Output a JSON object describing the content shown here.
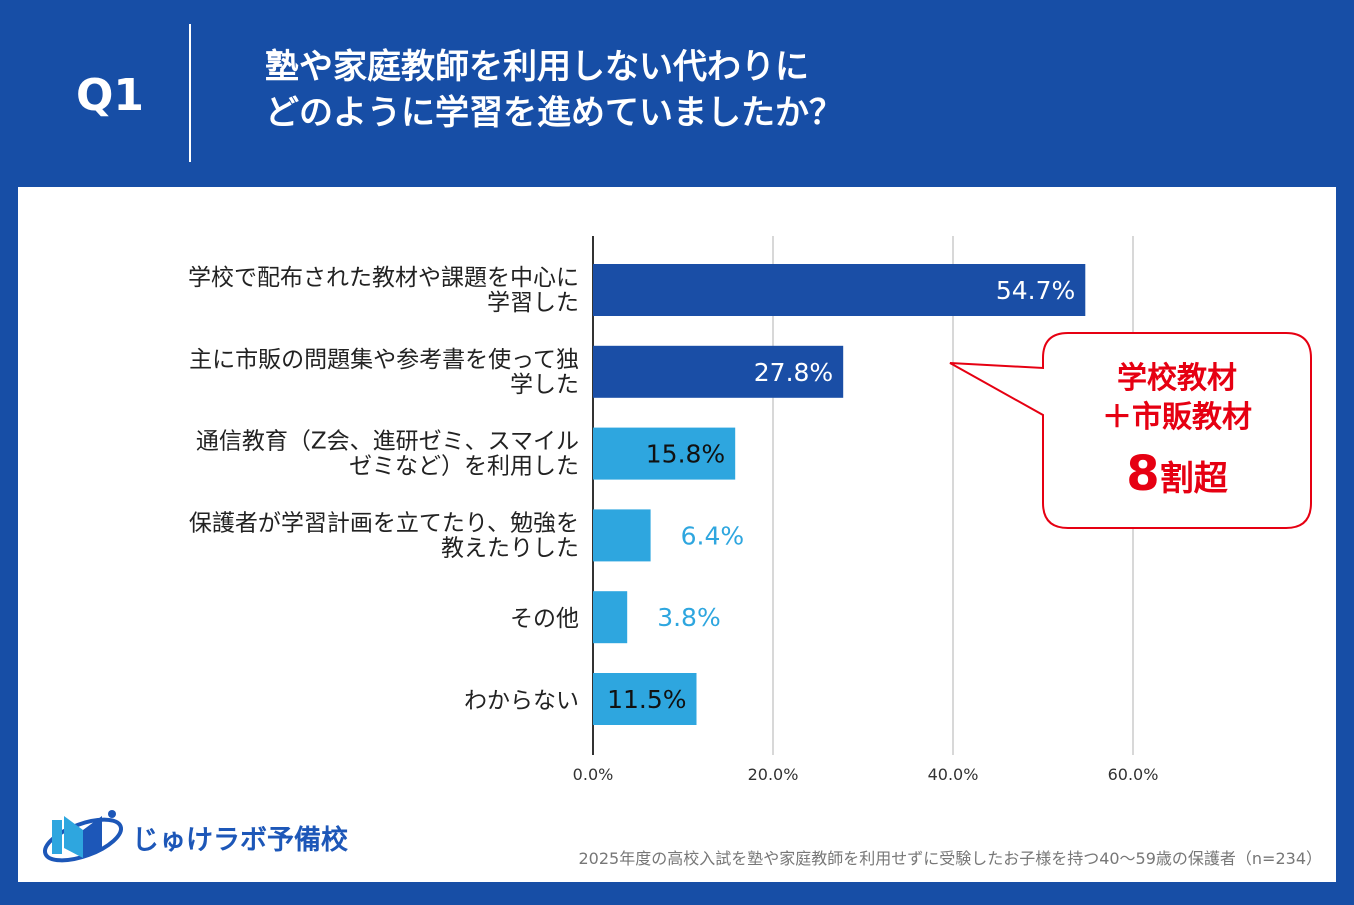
{
  "header": {
    "q_label": "Q1",
    "title_line1": "塾や家庭教師を利用しない代わりに",
    "title_line2": "どのように学習を進めていましたか？"
  },
  "chart_data": {
    "type": "bar",
    "orientation": "horizontal",
    "categories": [
      [
        "学校で配布された教材や課題を中心に",
        "学習した"
      ],
      [
        "主に市販の問題集や参考書を使って独",
        "学した"
      ],
      [
        "通信教育（Z会、進研ゼミ、スマイル",
        "ゼミなど）を利用した"
      ],
      [
        "保護者が学習計画を立てたり、勉強を",
        "教えたりした"
      ],
      [
        "その他"
      ],
      [
        "わからない"
      ]
    ],
    "values": [
      54.7,
      27.8,
      15.8,
      6.4,
      3.8,
      11.5
    ],
    "data_labels": [
      "54.7%",
      "27.8%",
      "15.8%",
      "6.4%",
      "3.8%",
      "11.5%"
    ],
    "bar_colors": [
      "#1a4ea6",
      "#1a4ea6",
      "#2ea6df",
      "#2ea6df",
      "#2ea6df",
      "#2ea6df"
    ],
    "xlim": [
      0,
      60
    ],
    "xticks": [
      "0.0%",
      "20.0%",
      "40.0%",
      "60.0%"
    ],
    "grid": true
  },
  "callout": {
    "line1": "学校教材",
    "line2": "＋市販教材",
    "big": "8",
    "suffix": "割超",
    "color": "#e60012"
  },
  "footer": {
    "logo_text": "じゅけラボ予備校",
    "note": "2025年度の高校入試を塾や家庭教師を利用せずに受験したお子様を持つ40～59歳の保護者（n=234）"
  }
}
